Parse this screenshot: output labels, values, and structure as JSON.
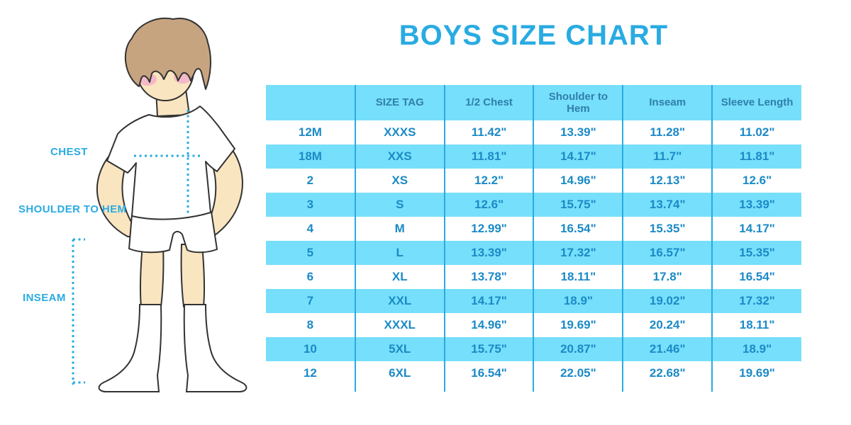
{
  "title": "BOYS SIZE CHART",
  "illustration": {
    "figure": "boy-with-measurement-guides",
    "labels": {
      "chest": "CHEST",
      "shoulder_to_hem": "SHOULDER TO HEM",
      "inseam": "INSEAM"
    }
  },
  "table": {
    "columns": [
      "",
      "SIZE TAG",
      "1/2 Chest",
      "Shoulder to Hem",
      "Inseam",
      "Sleeve Length"
    ],
    "rows": [
      [
        "12M",
        "XXXS",
        "11.42\"",
        "13.39\"",
        "11.28\"",
        "11.02\""
      ],
      [
        "18M",
        "XXS",
        "11.81\"",
        "14.17\"",
        "11.7\"",
        "11.81\""
      ],
      [
        "2",
        "XS",
        "12.2\"",
        "14.96\"",
        "12.13\"",
        "12.6\""
      ],
      [
        "3",
        "S",
        "12.6\"",
        "15.75\"",
        "13.74\"",
        "13.39\""
      ],
      [
        "4",
        "M",
        "12.99\"",
        "16.54\"",
        "15.35\"",
        "14.17\""
      ],
      [
        "5",
        "L",
        "13.39\"",
        "17.32\"",
        "16.57\"",
        "15.35\""
      ],
      [
        "6",
        "XL",
        "13.78\"",
        "18.11\"",
        "17.8\"",
        "16.54\""
      ],
      [
        "7",
        "XXL",
        "14.17\"",
        "18.9\"",
        "19.02\"",
        "17.32\""
      ],
      [
        "8",
        "XXXL",
        "14.96\"",
        "19.69\"",
        "20.24\"",
        "18.11\""
      ],
      [
        "10",
        "5XL",
        "15.75\"",
        "20.87\"",
        "21.46\"",
        "18.9\""
      ],
      [
        "12",
        "6XL",
        "16.54\"",
        "22.05\"",
        "22.68\"",
        "19.69\""
      ]
    ]
  },
  "colors": {
    "accent": "#29ABE2",
    "stripe": "#76DFFB",
    "header_text": "#2E7FAB",
    "cell_text": "#1B8AC6",
    "skin": "#FAE5C1",
    "hair": "#C7A480",
    "blush": "#F3AECB",
    "outline": "#333333"
  }
}
